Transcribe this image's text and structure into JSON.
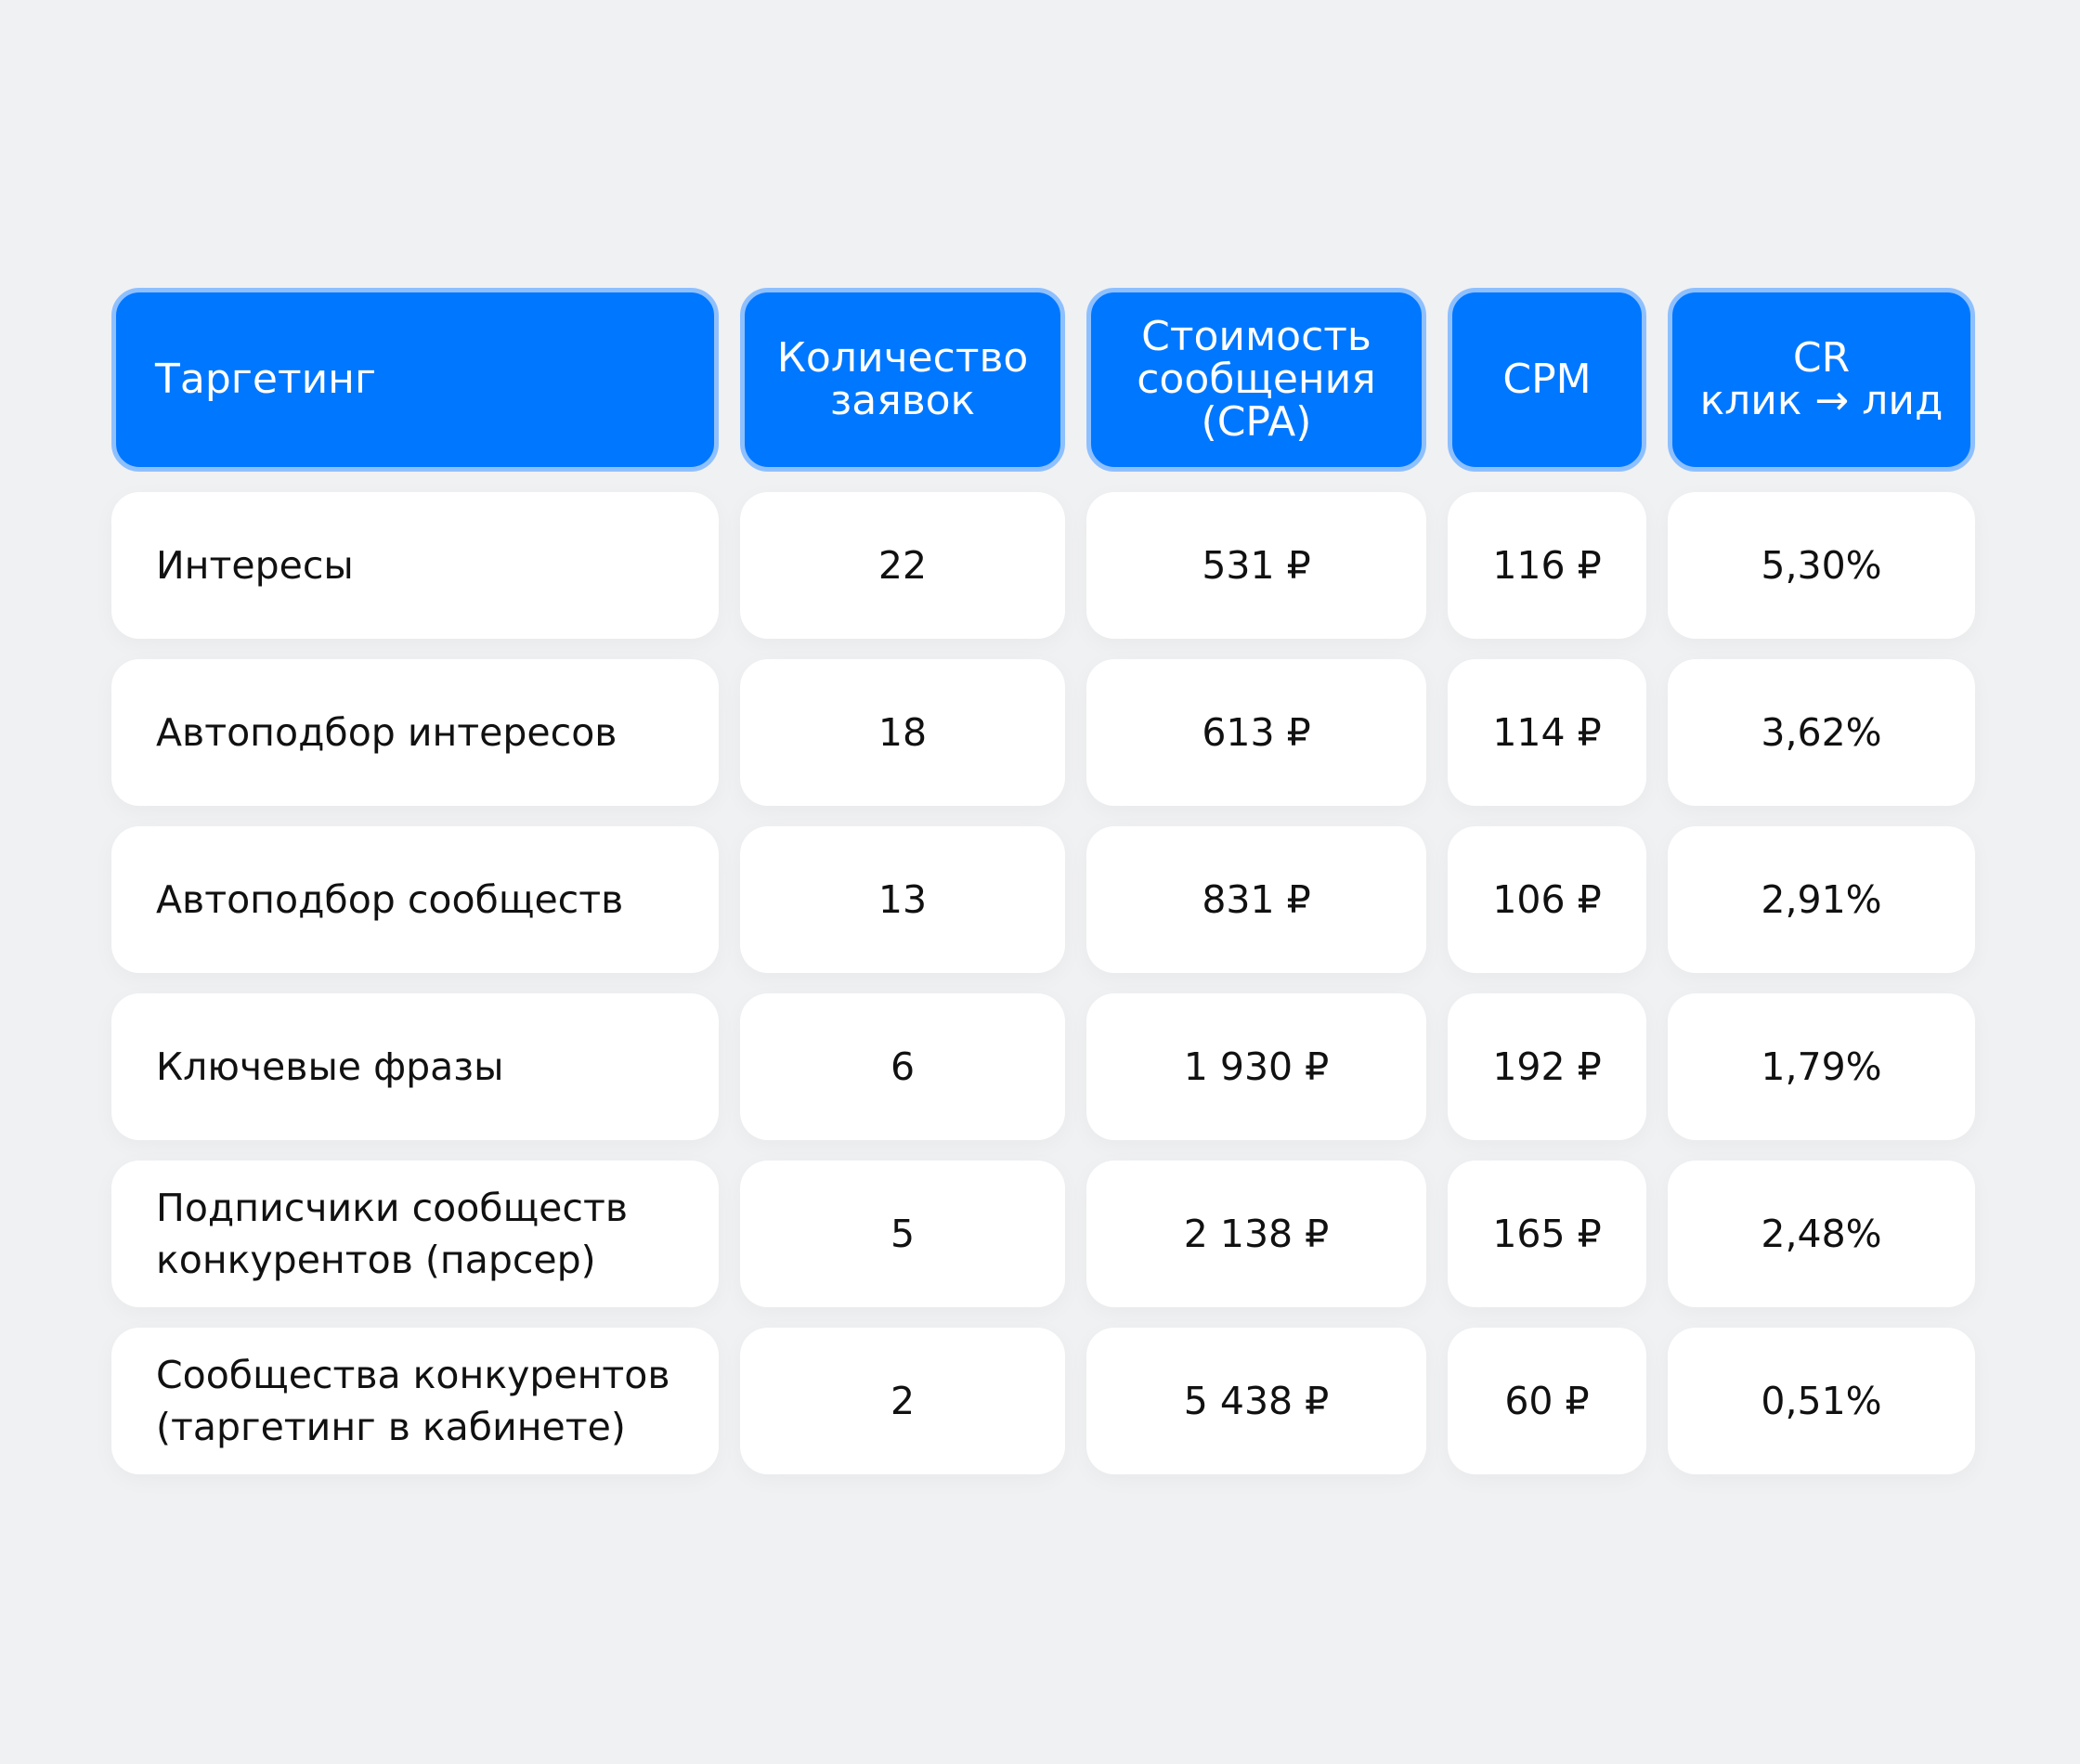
{
  "table": {
    "headers": [
      "Таргетинг",
      "Количество\nзаявок",
      "Стоимость\nсообщения\n(CPA)",
      "CPM",
      "CR\nклик → лид"
    ],
    "rows": [
      [
        "Интересы",
        "22",
        "531 ₽",
        "116 ₽",
        "5,30%"
      ],
      [
        "Автоподбор интересов",
        "18",
        "613 ₽",
        "114 ₽",
        "3,62%"
      ],
      [
        "Автоподбор сообществ",
        "13",
        "831 ₽",
        "106 ₽",
        "2,91%"
      ],
      [
        "Ключевые фразы",
        "6",
        "1 930 ₽",
        "192 ₽",
        "1,79%"
      ],
      [
        "Подписчики сообществ конкурентов (парсер)",
        "5",
        "2 138 ₽",
        "165 ₽",
        "2,48%"
      ],
      [
        "Сообщества конкурентов (таргетинг в кабинете)",
        "2",
        "5 438 ₽",
        "60 ₽",
        "0,51%"
      ]
    ]
  },
  "colors": {
    "page_background": "#f0f1f3",
    "header_background": "#0077ff",
    "header_border": "#8ec0ff",
    "header_text": "#ffffff",
    "cell_background": "#ffffff",
    "cell_text": "#111111"
  }
}
